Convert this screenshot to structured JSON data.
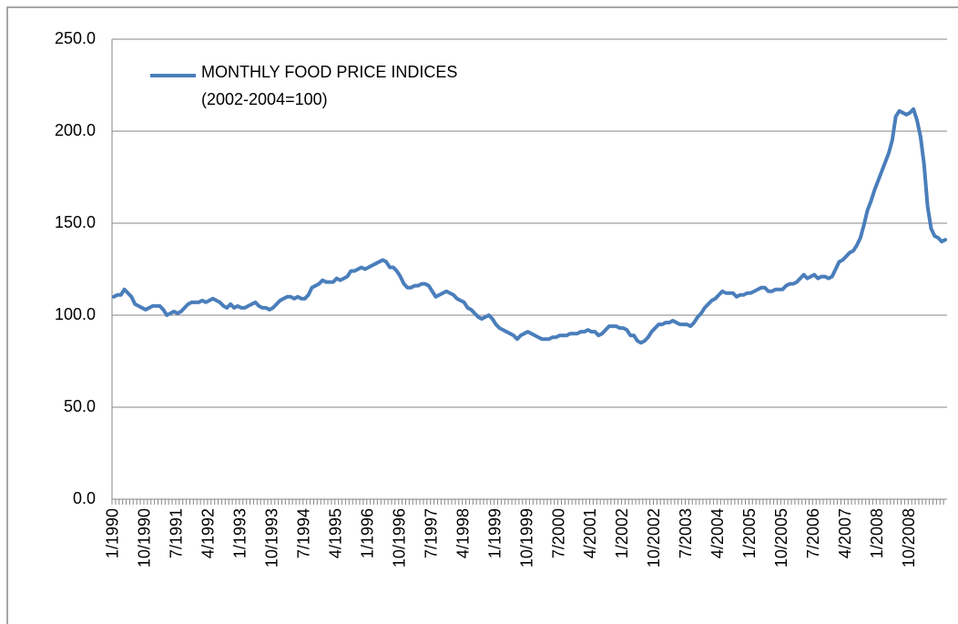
{
  "chart_data": {
    "type": "line",
    "categories": [
      "1/1990",
      null,
      null,
      null,
      null,
      null,
      null,
      null,
      null,
      "10/1990",
      null,
      null,
      null,
      null,
      null,
      null,
      null,
      null,
      "7/1991",
      null,
      null,
      null,
      null,
      null,
      null,
      null,
      null,
      "4/1992",
      null,
      null,
      null,
      null,
      null,
      null,
      null,
      null,
      "1/1993",
      null,
      null,
      null,
      null,
      null,
      null,
      null,
      null,
      "10/1993",
      null,
      null,
      null,
      null,
      null,
      null,
      null,
      null,
      "7/1994",
      null,
      null,
      null,
      null,
      null,
      null,
      null,
      null,
      "4/1995",
      null,
      null,
      null,
      null,
      null,
      null,
      null,
      null,
      "1/1996",
      null,
      null,
      null,
      null,
      null,
      null,
      null,
      null,
      "10/1996",
      null,
      null,
      null,
      null,
      null,
      null,
      null,
      null,
      "7/1997",
      null,
      null,
      null,
      null,
      null,
      null,
      null,
      null,
      "4/1998",
      null,
      null,
      null,
      null,
      null,
      null,
      null,
      null,
      "1/1999",
      null,
      null,
      null,
      null,
      null,
      null,
      null,
      null,
      "10/1999",
      null,
      null,
      null,
      null,
      null,
      null,
      null,
      null,
      "7/2000",
      null,
      null,
      null,
      null,
      null,
      null,
      null,
      null,
      "4/2001",
      null,
      null,
      null,
      null,
      null,
      null,
      null,
      null,
      "1/2002",
      null,
      null,
      null,
      null,
      null,
      null,
      null,
      null,
      "10/2002",
      null,
      null,
      null,
      null,
      null,
      null,
      null,
      null,
      "7/2003",
      null,
      null,
      null,
      null,
      null,
      null,
      null,
      null,
      "4/2004",
      null,
      null,
      null,
      null,
      null,
      null,
      null,
      null,
      "1/2005",
      null,
      null,
      null,
      null,
      null,
      null,
      null,
      null,
      "10/2005",
      null,
      null,
      null,
      null,
      null,
      null,
      null,
      null,
      "7/2006",
      null,
      null,
      null,
      null,
      null,
      null,
      null,
      null,
      "4/2007",
      null,
      null,
      null,
      null,
      null,
      null,
      null,
      null,
      "1/2008",
      null,
      null,
      null,
      null,
      null,
      null,
      null,
      null,
      "10/2008",
      null,
      null,
      null,
      null,
      null,
      null,
      null,
      null,
      null,
      null
    ],
    "series": [
      {
        "name": "MONTHLY FOOD PRICE INDICES (2002-2004=100)",
        "color": "#4a7ebb",
        "values": [
          110,
          111,
          111,
          114,
          112,
          110,
          106,
          105,
          104,
          103,
          104,
          105,
          105,
          105,
          103,
          100,
          101,
          102,
          101,
          102,
          104,
          106,
          107,
          107,
          107,
          108,
          107,
          108,
          109,
          108,
          107,
          105,
          104,
          106,
          104,
          105,
          104,
          104,
          105,
          106,
          107,
          105,
          104,
          104,
          103,
          104,
          106,
          108,
          109,
          110,
          110,
          109,
          110,
          109,
          109,
          111,
          115,
          116,
          117,
          119,
          118,
          118,
          118,
          120,
          119,
          120,
          121,
          124,
          124,
          125,
          126,
          125,
          126,
          127,
          128,
          129,
          130,
          129,
          126,
          126,
          124,
          121,
          117,
          115,
          115,
          116,
          116,
          117,
          117,
          116,
          113,
          110,
          111,
          112,
          113,
          112,
          111,
          109,
          108,
          107,
          104,
          103,
          101,
          99,
          98,
          99,
          100,
          98,
          95,
          93,
          92,
          91,
          90,
          89,
          87,
          89,
          90,
          91,
          90,
          89,
          88,
          87,
          87,
          87,
          88,
          88,
          89,
          89,
          89,
          90,
          90,
          90,
          91,
          91,
          92,
          91,
          91,
          89,
          90,
          92,
          94,
          94,
          94,
          93,
          93,
          92,
          89,
          89,
          86,
          85,
          86,
          88,
          91,
          93,
          95,
          95,
          96,
          96,
          97,
          96,
          95,
          95,
          95,
          94,
          96,
          99,
          101,
          104,
          106,
          108,
          109,
          111,
          113,
          112,
          112,
          112,
          110,
          111,
          111,
          112,
          112,
          113,
          114,
          115,
          115,
          113,
          113,
          114,
          114,
          114,
          116,
          117,
          117,
          118,
          120,
          122,
          120,
          121,
          122,
          120,
          121,
          121,
          120,
          121,
          125,
          129,
          130,
          132,
          134,
          135,
          138,
          142,
          149,
          157,
          162,
          168,
          173,
          178,
          183,
          188,
          195,
          208,
          211,
          210,
          209,
          210,
          212,
          206,
          197,
          182,
          159,
          147,
          143,
          142,
          140,
          141
        ]
      }
    ],
    "ylim": [
      0,
      250
    ],
    "yticks": [
      {
        "value": 0,
        "label": "0.0"
      },
      {
        "value": 50,
        "label": "50.0"
      },
      {
        "value": 100,
        "label": "100.0"
      },
      {
        "value": 150,
        "label": "150.0"
      },
      {
        "value": 200,
        "label": "200.0"
      },
      {
        "value": 250,
        "label": "250.0"
      }
    ],
    "grid": true
  }
}
